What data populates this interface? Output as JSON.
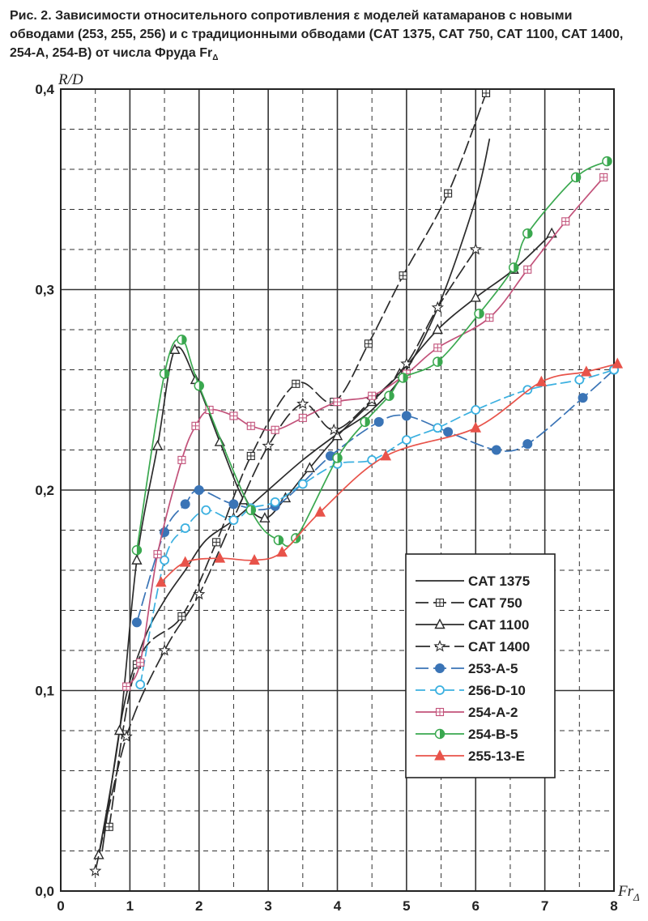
{
  "caption": {
    "text": "Рис. 2. Зависимости относительного сопротивления ε моделей катамаранов с новыми обводами (253, 255, 256) и с традиционными обводами (CAT 1375, CAT 750, CAT 1100, CAT 1400, 254-A, 254-B) от числа Фруда Fr",
    "subscript": "Δ"
  },
  "chart_data": {
    "type": "line",
    "ylabel": "R/D",
    "xlabel": "Fr",
    "xlabel_subscript": "Δ",
    "xlim": [
      0,
      8
    ],
    "ylim": [
      0,
      0.4
    ],
    "x_ticks": [
      "0",
      "1",
      "2",
      "3",
      "4",
      "5",
      "6",
      "7",
      "8"
    ],
    "y_ticks": [
      "0,0",
      "0,1",
      "0,2",
      "0,3",
      "0,4"
    ],
    "grid": "major solid, minor dashed",
    "legend_position": "bottom-right",
    "series": [
      {
        "name": "CAT 1375",
        "color": "#2b2b2b",
        "marker": "none",
        "dash": "",
        "x": [
          0.6,
          0.9,
          1.2,
          1.5,
          1.8,
          2.1,
          2.5,
          3.0,
          3.5,
          4.0,
          4.5,
          5.0,
          5.5,
          6.0,
          6.2
        ],
        "y": [
          0.02,
          0.09,
          0.125,
          0.145,
          0.16,
          0.175,
          0.185,
          0.2,
          0.215,
          0.228,
          0.24,
          0.26,
          0.295,
          0.345,
          0.375
        ]
      },
      {
        "name": "CAT 750",
        "color": "#2b2b2b",
        "marker": "square-cross",
        "dash": "16 6",
        "x": [
          0.7,
          1.1,
          1.75,
          2.25,
          2.75,
          3.4,
          3.95,
          4.45,
          4.95,
          5.6,
          6.15
        ],
        "y": [
          0.032,
          0.113,
          0.137,
          0.174,
          0.217,
          0.253,
          0.244,
          0.273,
          0.307,
          0.348,
          0.398
        ]
      },
      {
        "name": "CAT 1100",
        "color": "#2b2b2b",
        "marker": "triangle-open",
        "dash": "",
        "x": [
          0.55,
          0.85,
          1.1,
          1.4,
          1.65,
          1.95,
          2.3,
          2.65,
          2.95,
          3.25,
          3.6,
          4.0,
          4.5,
          4.9,
          5.45,
          6.0,
          6.55,
          7.1
        ],
        "y": [
          0.018,
          0.08,
          0.165,
          0.222,
          0.27,
          0.255,
          0.224,
          0.195,
          0.186,
          0.196,
          0.211,
          0.227,
          0.244,
          0.258,
          0.28,
          0.296,
          0.31,
          0.328
        ]
      },
      {
        "name": "CAT 1400",
        "color": "#2b2b2b",
        "marker": "star-open",
        "dash": "18 6",
        "x": [
          0.5,
          0.95,
          1.5,
          2.0,
          2.5,
          3.0,
          3.5,
          3.95,
          4.5,
          5.0,
          5.45,
          6.0
        ],
        "y": [
          0.01,
          0.077,
          0.12,
          0.148,
          0.186,
          0.222,
          0.243,
          0.23,
          0.245,
          0.263,
          0.291,
          0.32
        ]
      },
      {
        "name": "253-A-5",
        "color": "#3a74b6",
        "marker": "circle-filled",
        "dash": "16 6",
        "x": [
          1.1,
          1.5,
          1.8,
          2.0,
          2.5,
          3.1,
          3.9,
          4.6,
          5.0,
          5.6,
          6.3,
          6.75,
          7.55,
          8.0
        ],
        "y": [
          0.134,
          0.179,
          0.193,
          0.2,
          0.193,
          0.192,
          0.217,
          0.234,
          0.237,
          0.229,
          0.22,
          0.223,
          0.246,
          0.26
        ]
      },
      {
        "name": "256-D-10",
        "color": "#3bb0e0",
        "marker": "circle-open",
        "dash": "12 6",
        "x": [
          1.15,
          1.5,
          1.8,
          2.1,
          2.5,
          2.75,
          3.1,
          3.5,
          4.0,
          4.5,
          5.0,
          5.45,
          6.0,
          6.75,
          7.5,
          8.0
        ],
        "y": [
          0.103,
          0.165,
          0.181,
          0.19,
          0.185,
          0.191,
          0.194,
          0.203,
          0.213,
          0.215,
          0.225,
          0.231,
          0.24,
          0.25,
          0.255,
          0.26
        ]
      },
      {
        "name": "254-A-2",
        "color": "#c2527a",
        "marker": "square-cross",
        "dash": "",
        "x": [
          0.95,
          1.15,
          1.4,
          1.75,
          1.95,
          2.15,
          2.5,
          2.75,
          3.1,
          3.5,
          4.0,
          4.5,
          5.0,
          5.45,
          6.2,
          6.75,
          7.3,
          7.85
        ],
        "y": [
          0.102,
          0.114,
          0.168,
          0.215,
          0.232,
          0.24,
          0.237,
          0.232,
          0.23,
          0.236,
          0.244,
          0.247,
          0.258,
          0.271,
          0.286,
          0.31,
          0.334,
          0.356
        ]
      },
      {
        "name": "254-B-5",
        "color": "#3aa84f",
        "marker": "circle-half",
        "dash": "",
        "x": [
          1.1,
          1.5,
          1.75,
          2.0,
          2.75,
          3.15,
          3.4,
          4.0,
          4.4,
          4.75,
          4.95,
          5.45,
          6.05,
          6.55,
          6.75,
          7.45,
          7.9
        ],
        "y": [
          0.17,
          0.258,
          0.275,
          0.252,
          0.19,
          0.175,
          0.176,
          0.216,
          0.234,
          0.247,
          0.256,
          0.264,
          0.288,
          0.311,
          0.328,
          0.356,
          0.364
        ]
      },
      {
        "name": "255-13-E",
        "color": "#e8534a",
        "marker": "triangle-filled",
        "dash": "",
        "x": [
          1.45,
          1.8,
          2.3,
          2.8,
          3.2,
          3.75,
          4.7,
          6.0,
          6.95,
          7.6,
          8.05
        ],
        "y": [
          0.154,
          0.164,
          0.166,
          0.165,
          0.169,
          0.189,
          0.217,
          0.231,
          0.254,
          0.259,
          0.263
        ]
      }
    ]
  }
}
